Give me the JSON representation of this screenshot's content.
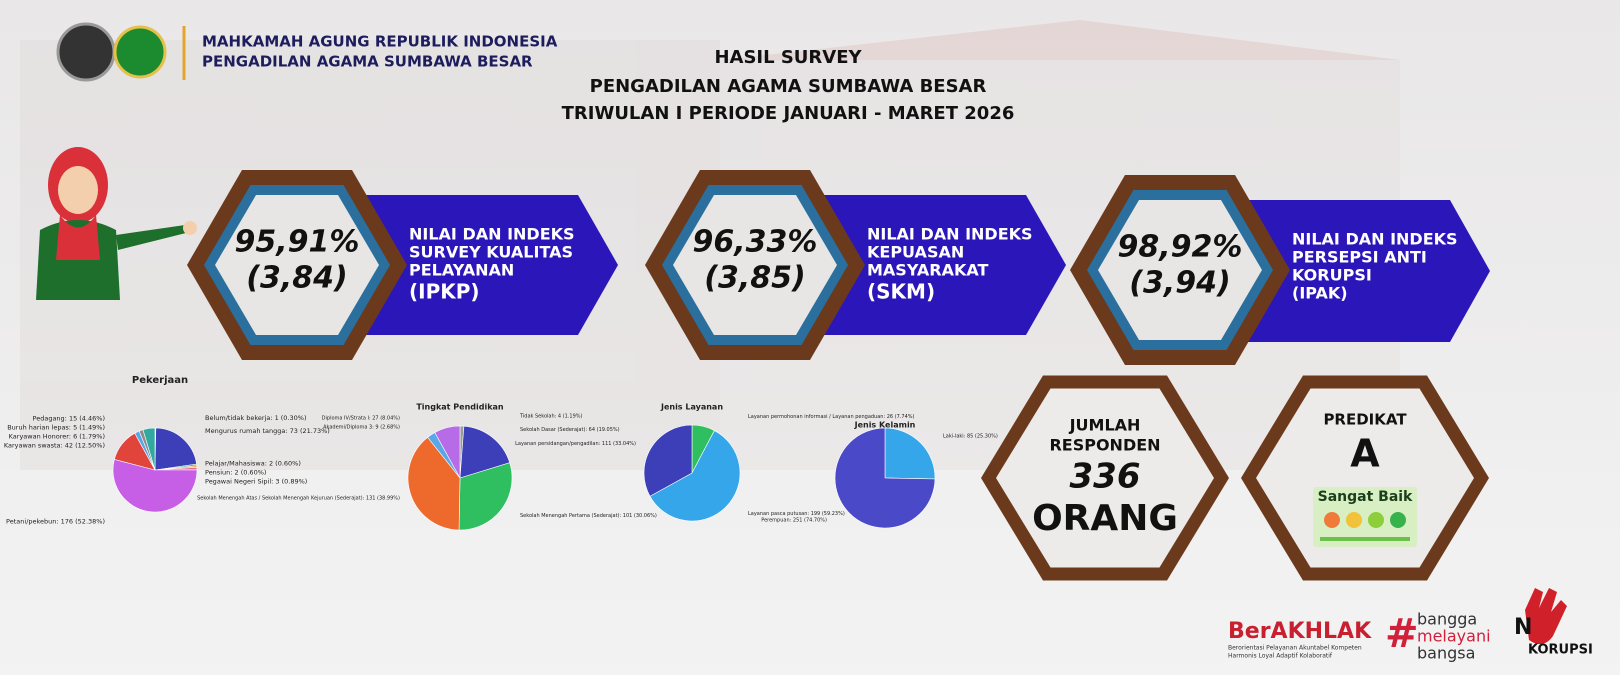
{
  "header": {
    "org1": "MAHKAMAH AGUNG REPUBLIK INDONESIA",
    "org2": "PENGADILAN AGAMA SUMBAWA BESAR"
  },
  "title": [
    "HASIL SURVEY",
    "PENGADILAN AGAMA SUMBAWA BESAR",
    "TRIWULAN I PERIODE JANUARI - MARET 2026"
  ],
  "indices": [
    {
      "value": "95,91%",
      "score": "(3,84)",
      "label": [
        "NILAI DAN INDEKS",
        "SURVEY KUALITAS",
        "PELAYANAN"
      ],
      "code": "(IPKP)"
    },
    {
      "value": "96,33%",
      "score": "(3,85)",
      "label": [
        "NILAI DAN INDEKS",
        "KEPUASAN",
        "MASYARAKAT"
      ],
      "code": "(SKM)"
    },
    {
      "value": "98,92%",
      "score": "(3,94)",
      "label": [
        "NILAI DAN INDEKS",
        "PERSEPSI ANTI",
        "KORUPSI"
      ],
      "code": "(IPAK)"
    }
  ],
  "charts": [
    {
      "type": "pie",
      "title": "Pekerjaan",
      "slices": [
        {
          "label": "Belum/tidak bekerja: 1 (0.30%)",
          "value": 1,
          "color": "#8fb6e8"
        },
        {
          "label": "Mengurus rumah tangga: 73 (21.73%)",
          "value": 73,
          "color": "#3c3fb8"
        },
        {
          "label": "Pelajar/Mahasiswa: 2 (0.60%)",
          "value": 2,
          "color": "#37b37a"
        },
        {
          "label": "Pensiun: 2 (0.60%)",
          "value": 2,
          "color": "#f0a030"
        },
        {
          "label": "Pegawai Negeri Sipil: 3 (0.89%)",
          "value": 3,
          "color": "#e36b8e"
        },
        {
          "label": "Petani/pekebun: 176 (52.38%)",
          "value": 176,
          "color": "#c65ee6"
        },
        {
          "label": "Karyawan swasta: 42 (12.50%)",
          "value": 42,
          "color": "#e0443a"
        },
        {
          "label": "Karyawan Honorer: 6 (1.79%)",
          "value": 6,
          "color": "#5aa7e8"
        },
        {
          "label": "Buruh harian lepas: 5 (1.49%)",
          "value": 5,
          "color": "#8c8c8c"
        },
        {
          "label": "Pedagang: 15 (4.46%)",
          "value": 15,
          "color": "#31a9a0"
        }
      ]
    },
    {
      "type": "pie",
      "title": "Tingkat Pendidikan",
      "slices": [
        {
          "label": "Tidak Sekolah: 4 (1.19%)",
          "value": 4,
          "color": "#9a9a9a"
        },
        {
          "label": "Sekolah Dasar (Sederajat): 64 (19.05%)",
          "value": 64,
          "color": "#3c3fb8"
        },
        {
          "label": "Sekolah Menengah Pertama (Sederajat): 101 (30.06%)",
          "value": 101,
          "color": "#2fbf60"
        },
        {
          "label": "Sekolah Menengah Atas / Sekolah Menengah Kejuruan (Sederajat): 131 (38.99%)",
          "value": 131,
          "color": "#ee6a2c"
        },
        {
          "label": "Akademi/Diploma 3: 9 (2.68%)",
          "value": 9,
          "color": "#5aa7e8"
        },
        {
          "label": "Diploma IV/Strata I: 27 (8.04%)",
          "value": 27,
          "color": "#b86be6"
        }
      ]
    },
    {
      "type": "pie",
      "title": "Jenis Layanan",
      "slices": [
        {
          "label": "Layanan permohonan informasi / Layanan pengaduan: 26 (7.74%)",
          "value": 26,
          "color": "#2fbf60"
        },
        {
          "label": "Layanan pasca putusan: 199 (59.23%)",
          "value": 199,
          "color": "#35a6ea"
        },
        {
          "label": "Layanan persidangan/pengadilan: 111 (33.04%)",
          "value": 111,
          "color": "#3c3fb8"
        }
      ]
    },
    {
      "type": "pie",
      "title": "Jenis Kelamin",
      "slices": [
        {
          "label": "Laki-laki: 85 (25.30%)",
          "value": 85,
          "color": "#35a6ea"
        },
        {
          "label": "Perempuan: 251 (74.70%)",
          "value": 251,
          "color": "#4a49c8"
        }
      ]
    }
  ],
  "respondents": {
    "label": [
      "JUMLAH",
      "RESPONDEN"
    ],
    "value": "336",
    "unit": "ORANG"
  },
  "predicate": {
    "label": "PREDIKAT",
    "grade": "A",
    "text": "Sangat Baik"
  },
  "footer": {
    "berakhlak": "BerAKHLAK",
    "berakhlak_sub": [
      "Berorientasi Pelayanan Akuntabel Kompeten",
      "Harmonis Loyal Adaptif Kolaboratif"
    ],
    "bangga": [
      "bangga",
      "melayani",
      "bangsa"
    ],
    "no": "N",
    "korupsi": "KORUPSI"
  }
}
